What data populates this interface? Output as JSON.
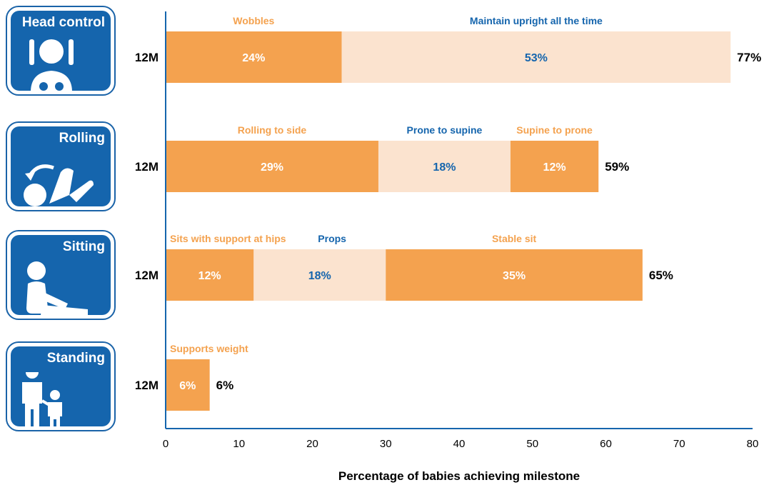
{
  "chart_data": {
    "type": "bar",
    "orientation": "horizontal",
    "stacked": true,
    "xlabel": "Percentage of babies achieving milestone",
    "xlim": [
      0,
      80
    ],
    "xticks": [
      0,
      10,
      20,
      30,
      40,
      50,
      60,
      70,
      80
    ],
    "grid": false,
    "colors": {
      "dark": "#f4a24f",
      "light": "#fbe3cf",
      "orange_text": "#f4a24f",
      "blue_text": "#1565ad",
      "axis": "#1565ad"
    },
    "groups": [
      {
        "milestone": "Head control",
        "icon": "infant-head-control-icon",
        "age": "12M",
        "total": 77,
        "total_label": "77%",
        "segments": [
          {
            "name": "Wobbles",
            "value": 24,
            "label": "24%",
            "shade": "dark",
            "name_color": "orange"
          },
          {
            "name": "Maintain upright all the time",
            "value": 53,
            "label": "53%",
            "shade": "light",
            "name_color": "blue"
          }
        ]
      },
      {
        "milestone": "Rolling",
        "icon": "rolling-baby-icon",
        "age": "12M",
        "total": 59,
        "total_label": "59%",
        "segments": [
          {
            "name": "Rolling to side",
            "value": 29,
            "label": "29%",
            "shade": "dark",
            "name_color": "orange"
          },
          {
            "name": "Prone to supine",
            "value": 18,
            "label": "18%",
            "shade": "light",
            "name_color": "blue"
          },
          {
            "name": "Supine to prone",
            "value": 12,
            "label": "12%",
            "shade": "dark",
            "name_color": "orange"
          }
        ]
      },
      {
        "milestone": "Sitting",
        "icon": "sitting-baby-icon",
        "age": "12M",
        "total": 65,
        "total_label": "65%",
        "segments": [
          {
            "name": "Sits with support at hips",
            "value": 12,
            "label": "12%",
            "shade": "dark",
            "name_color": "orange"
          },
          {
            "name": "Props",
            "value": 18,
            "label": "18%",
            "shade": "light",
            "name_color": "blue"
          },
          {
            "name": "Stable sit",
            "value": 35,
            "label": "35%",
            "shade": "dark",
            "name_color": "orange"
          }
        ]
      },
      {
        "milestone": "Standing",
        "icon": "adult-child-standing-icon",
        "age": "12M",
        "total": 6,
        "total_label": "6%",
        "segments": [
          {
            "name": "Supports weight",
            "value": 6,
            "label": "6%",
            "shade": "dark",
            "name_color": "orange"
          }
        ]
      }
    ]
  }
}
